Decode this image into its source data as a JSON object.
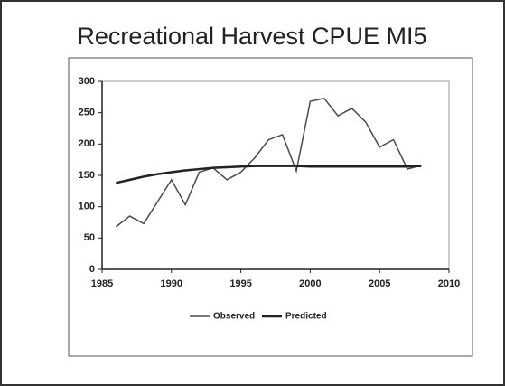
{
  "chart_data": {
    "type": "line",
    "title": "Recreational Harvest CPUE MI5",
    "x": [
      1986,
      1987,
      1988,
      1989,
      1990,
      1991,
      1992,
      1993,
      1994,
      1995,
      1996,
      1997,
      1998,
      1999,
      2000,
      2001,
      2002,
      2003,
      2004,
      2005,
      2006,
      2007,
      2008
    ],
    "series": [
      {
        "name": "Observed",
        "color": "#4a4a4a",
        "values": [
          68,
          85,
          73,
          108,
          143,
          103,
          155,
          162,
          143,
          155,
          178,
          207,
          215,
          157,
          268,
          273,
          245,
          257,
          235,
          195,
          207,
          160,
          166
        ]
      },
      {
        "name": "Predicted",
        "color": "#222222",
        "values": [
          138,
          143,
          148,
          152,
          155,
          158,
          160,
          162,
          163,
          164,
          165,
          165,
          165,
          165,
          164,
          164,
          164,
          164,
          164,
          164,
          164,
          164,
          165
        ]
      }
    ],
    "xlim": [
      1985,
      2010
    ],
    "xticks": [
      1985,
      1990,
      1995,
      2000,
      2005,
      2010
    ],
    "ylim": [
      0,
      300
    ],
    "yticks": [
      0,
      50,
      100,
      150,
      200,
      250,
      300
    ],
    "legend": "bottom"
  }
}
